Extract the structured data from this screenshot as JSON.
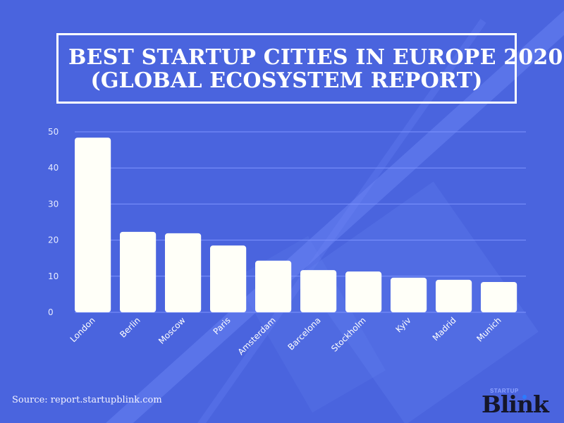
{
  "title": {
    "line1": "BEST STARTUP CITIES IN EUROPE 2020",
    "line2": "(GLOBAL ECOSYSTEM REPORT)"
  },
  "source": "Source: report.startupblink.com",
  "logo": {
    "small": "STARTUP",
    "big": "Blink"
  },
  "colors": {
    "background": "#4a64de",
    "bar": "#fffff8",
    "grid": "#7f95ff",
    "text": "#ffffff"
  },
  "chart_data": {
    "type": "bar",
    "title": "BEST STARTUP CITIES IN EUROPE 2020 (GLOBAL ECOSYSTEM REPORT)",
    "xlabel": "",
    "ylabel": "",
    "categories": [
      "London",
      "Berlin",
      "Moscow",
      "Paris",
      "Amsterdam",
      "Barcelona",
      "Stockholm",
      "Kyiv",
      "Madrid",
      "Munich"
    ],
    "values": [
      48.4,
      22.3,
      21.9,
      18.5,
      14.3,
      11.7,
      11.3,
      9.6,
      9.0,
      8.4
    ],
    "ylim": [
      0,
      50
    ],
    "yticks": [
      0,
      10,
      20,
      30,
      40,
      50
    ],
    "grid": true,
    "legend": "none"
  }
}
